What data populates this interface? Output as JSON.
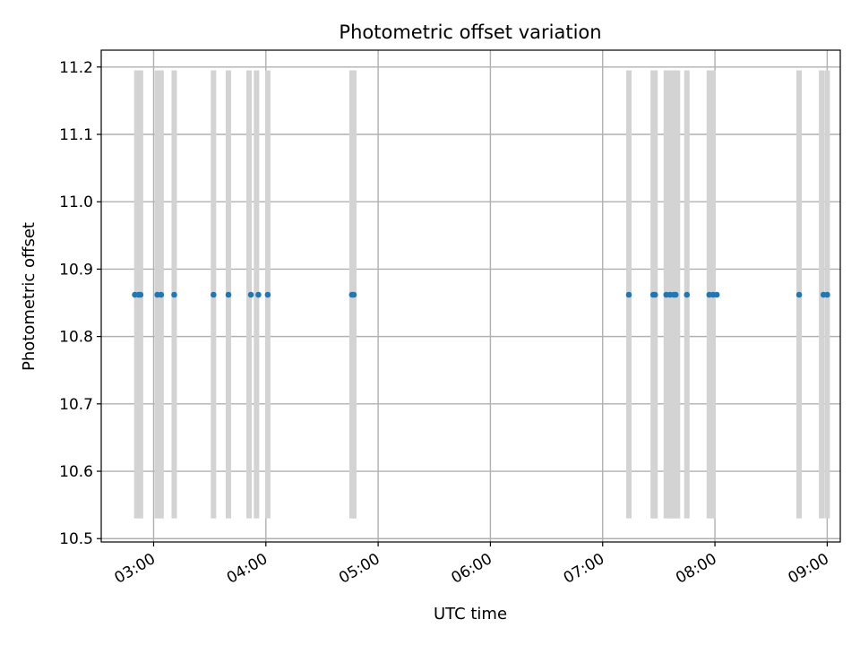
{
  "chart_data": {
    "type": "scatter",
    "title": "Photometric offset variation",
    "xlabel": "UTC time",
    "ylabel": "Photometric offset",
    "x_ticks": [
      "03:00",
      "04:00",
      "05:00",
      "06:00",
      "07:00",
      "08:00",
      "09:00"
    ],
    "y_ticks": [
      "10.5",
      "10.6",
      "10.7",
      "10.8",
      "10.9",
      "11.0",
      "11.1",
      "11.2"
    ],
    "xlim": [
      "02:32",
      "09:07"
    ],
    "ylim": [
      10.495,
      11.225
    ],
    "grid": true,
    "colors": {
      "points": "#1f77b4",
      "bars": "#d3d3d3",
      "grid": "#b0b0b0"
    },
    "series": [
      {
        "x": [
          "02:50",
          "02:52",
          "02:53",
          "03:02",
          "03:04",
          "03:11",
          "03:32",
          "03:40",
          "03:52",
          "03:56",
          "04:01",
          "04:46",
          "04:47",
          "07:14",
          "07:27",
          "07:28",
          "07:34",
          "07:36",
          "07:38",
          "07:39",
          "07:45",
          "07:57",
          "07:59",
          "08:01",
          "08:45",
          "08:58",
          "09:00"
        ],
        "y": [
          10.862,
          10.862,
          10.862,
          10.862,
          10.862,
          10.862,
          10.862,
          10.862,
          10.862,
          10.862,
          10.862,
          10.862,
          10.862,
          10.862,
          10.862,
          10.862,
          10.862,
          10.862,
          10.862,
          10.862,
          10.862,
          10.862,
          10.862,
          10.862,
          10.862,
          10.862,
          10.862
        ]
      }
    ],
    "bands": {
      "y_range": [
        10.53,
        11.195
      ],
      "x": [
        "02:51",
        "02:53",
        "03:02",
        "03:04",
        "03:11",
        "03:32",
        "03:40",
        "03:51",
        "03:55",
        "04:01",
        "04:46",
        "04:47",
        "07:14",
        "07:27",
        "07:28",
        "07:34",
        "07:36",
        "07:38",
        "07:40",
        "07:45",
        "07:57",
        "07:59",
        "08:45",
        "08:57",
        "09:00"
      ]
    }
  }
}
